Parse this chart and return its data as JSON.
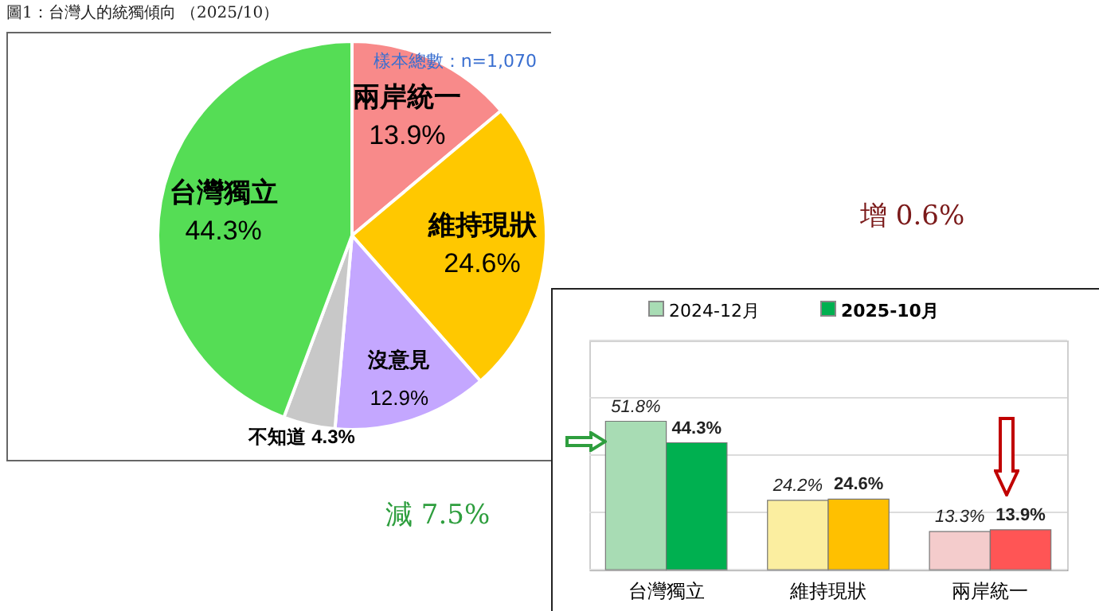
{
  "chart_data": [
    {
      "type": "pie",
      "title": "圖1：台灣人的統獨傾向 （2025/10）",
      "categories": [
        "兩岸統一",
        "維持現狀",
        "沒意見",
        "不知道",
        "台灣獨立"
      ],
      "values": [
        13.9,
        24.6,
        12.9,
        4.3,
        44.3
      ],
      "value_labels": [
        "13.9%",
        "24.6%",
        "12.9%",
        "4.3%",
        "44.3%"
      ],
      "colors": [
        "#f88a8a",
        "#ffc800",
        "#c4a7ff",
        "#c8c8c8",
        "#55dd55"
      ],
      "annotations": [
        "樣本總數：n=1,070"
      ]
    },
    {
      "type": "bar",
      "categories": [
        "台灣獨立",
        "維持現狀",
        "兩岸統一"
      ],
      "series": [
        {
          "name": "2024-12月",
          "color": "#a8dcb4",
          "colors": [
            "#a8dcb4",
            "#fbeea0",
            "#f4cccc"
          ],
          "values": [
            51.8,
            24.2,
            13.3
          ],
          "value_labels": [
            "51.8%",
            "24.2%",
            "13.3%"
          ]
        },
        {
          "name": "2025-10月",
          "color": "#00b050",
          "colors": [
            "#00b050",
            "#ffc000",
            "#ff5555"
          ],
          "values": [
            44.3,
            24.6,
            13.9
          ],
          "value_labels": [
            "44.3%",
            "24.6%",
            "13.9%"
          ]
        }
      ],
      "ylim": [
        0,
        80
      ],
      "yticks": [
        {
          "value": 0,
          "label": null
        },
        {
          "value": 20,
          "label": null
        },
        {
          "value": 40,
          "label": null
        },
        {
          "value": 60,
          "label": null
        },
        {
          "value": 80,
          "label": null
        }
      ],
      "grid": true,
      "tick_labels": "x",
      "legend": "top",
      "annotations": [
        "增 0.6%",
        "減 7.5%"
      ]
    }
  ]
}
